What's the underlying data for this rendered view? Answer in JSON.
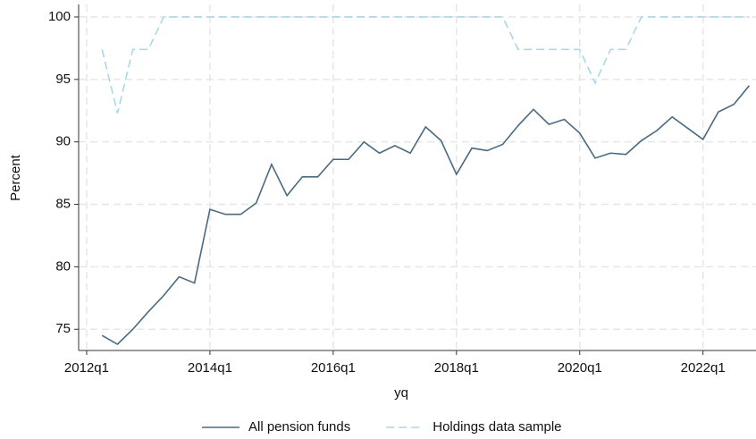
{
  "chart_data": {
    "type": "line",
    "xlabel": "yq",
    "ylabel": "Percent",
    "x": [
      2012.25,
      2012.5,
      2012.75,
      2013,
      2013.25,
      2013.5,
      2013.75,
      2014,
      2014.25,
      2014.5,
      2014.75,
      2015,
      2015.25,
      2015.5,
      2015.75,
      2016,
      2016.25,
      2016.5,
      2016.75,
      2017,
      2017.25,
      2017.5,
      2017.75,
      2018,
      2018.25,
      2018.5,
      2018.75,
      2019,
      2019.25,
      2019.5,
      2019.75,
      2020,
      2020.25,
      2020.5,
      2020.75,
      2021,
      2021.25,
      2021.5,
      2021.75,
      2022,
      2022.25,
      2022.5,
      2022.75
    ],
    "series": [
      {
        "name": "All pension funds",
        "color": "#4a6a80",
        "dash": false,
        "values": [
          74.5,
          73.8,
          75,
          76.4,
          77.7,
          79.2,
          78.7,
          84.6,
          84.2,
          84.2,
          85.1,
          88.2,
          85.7,
          87.2,
          87.2,
          88.6,
          88.6,
          90,
          89.1,
          89.7,
          89.1,
          91.2,
          90.1,
          87.4,
          89.5,
          89.3,
          89.8,
          91.3,
          92.6,
          91.4,
          91.8,
          90.7,
          88.7,
          89.1,
          89,
          90.1,
          90.9,
          92,
          91.1,
          90.2,
          92.4,
          93,
          94.5
        ]
      },
      {
        "name": "Holdings data sample",
        "color": "#a9d8e6",
        "dash": true,
        "values": [
          97.4,
          92.3,
          97.4,
          97.4,
          100,
          100,
          100,
          100,
          100,
          100,
          100,
          100,
          100,
          100,
          100,
          100,
          100,
          100,
          100,
          100,
          100,
          100,
          100,
          100,
          100,
          100,
          100,
          97.4,
          97.4,
          97.4,
          97.4,
          97.4,
          94.7,
          97.4,
          97.4,
          100,
          100,
          100,
          100,
          100,
          100,
          100,
          100
        ]
      }
    ],
    "xlim": [
      2011.87,
      2022.86
    ],
    "ylim": [
      73.3,
      101
    ],
    "xticks": [
      {
        "value": 2012,
        "label": "2012q1"
      },
      {
        "value": 2014,
        "label": "2014q1"
      },
      {
        "value": 2016,
        "label": "2016q1"
      },
      {
        "value": 2018,
        "label": "2018q1"
      },
      {
        "value": 2020,
        "label": "2020q1"
      },
      {
        "value": 2022,
        "label": "2022q1"
      }
    ],
    "yticks": [
      75,
      80,
      85,
      90,
      95,
      100
    ],
    "grid": true,
    "legend": "bottom"
  }
}
